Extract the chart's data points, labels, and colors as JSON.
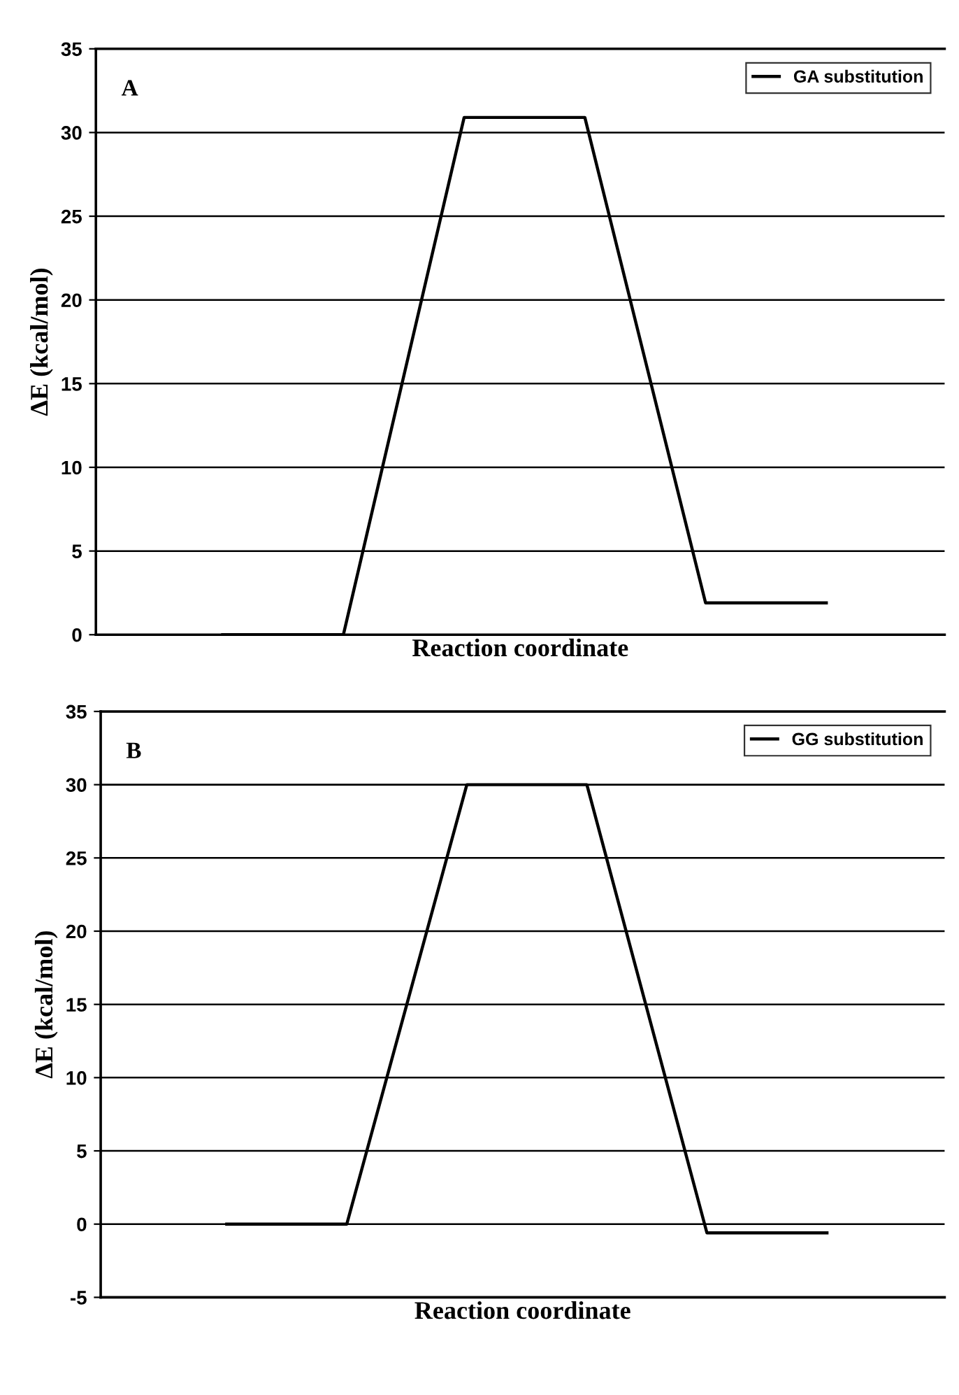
{
  "chart_data": [
    {
      "type": "line",
      "annotations": [
        "A"
      ],
      "xlabel": "Reaction coordinate",
      "ylabel": "ΔE (kcal/mol)",
      "categories": [
        null,
        null,
        null,
        null,
        null,
        null
      ],
      "series": [
        {
          "name": "GA substitution",
          "color": "#000000",
          "values": [
            0,
            0,
            30.9,
            30.9,
            1.9,
            1.9
          ]
        }
      ],
      "ylim": [
        0,
        35
      ],
      "yticks": [
        0,
        5,
        10,
        15,
        20,
        25,
        30,
        35
      ],
      "grid": "y",
      "legend": "top right",
      "tick_labels": "y"
    },
    {
      "type": "line",
      "annotations": [
        "B"
      ],
      "xlabel": "Reaction coordinate",
      "ylabel": "ΔE (kcal/mol)",
      "categories": [
        null,
        null,
        null,
        null,
        null,
        null
      ],
      "series": [
        {
          "name": "GG substitution",
          "color": "#000000",
          "values": [
            0,
            0,
            30,
            30,
            -0.6,
            -0.6
          ]
        }
      ],
      "ylim": [
        -5,
        35
      ],
      "yticks": [
        -5,
        0,
        5,
        10,
        15,
        20,
        25,
        30,
        35
      ],
      "grid": "y",
      "legend": "top right",
      "tick_labels": "y"
    }
  ]
}
